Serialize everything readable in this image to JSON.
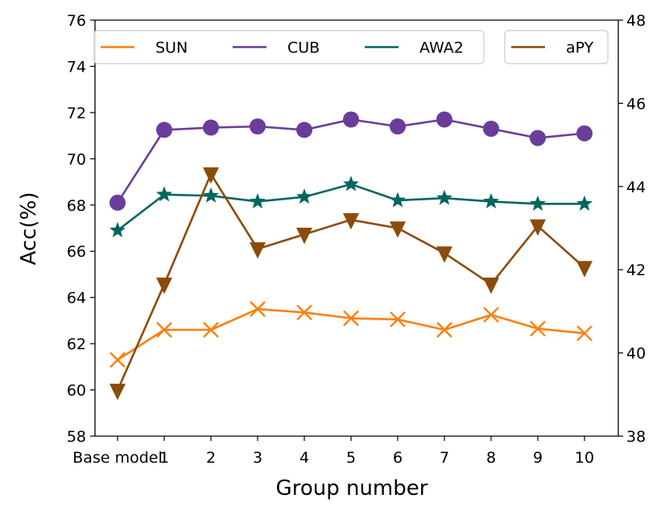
{
  "chart_data": {
    "type": "line",
    "title": "",
    "xlabel": "Group number",
    "ylabel": "Acc(%)",
    "categories": [
      "Base model",
      "1",
      "2",
      "3",
      "4",
      "5",
      "6",
      "7",
      "8",
      "9",
      "10"
    ],
    "ylim": [
      58,
      76
    ],
    "yticks": [
      "58",
      "60",
      "62",
      "64",
      "66",
      "68",
      "70",
      "72",
      "74",
      "76"
    ],
    "y2lim": [
      38,
      48
    ],
    "y2ticks": [
      "38",
      "40",
      "42",
      "44",
      "46",
      "48"
    ],
    "grid": false,
    "legend_position": "top",
    "series": [
      {
        "name": "SUN",
        "axis": "left",
        "color": "#ff7f0e",
        "marker": "x",
        "values": [
          61.3,
          62.6,
          62.6,
          63.5,
          63.35,
          63.1,
          63.05,
          62.6,
          63.25,
          62.65,
          62.45
        ]
      },
      {
        "name": "CUB",
        "axis": "left",
        "color": "#6a3d9a",
        "marker": "circle",
        "values": [
          68.1,
          71.25,
          71.35,
          71.4,
          71.25,
          71.7,
          71.4,
          71.7,
          71.3,
          70.9,
          71.1
        ]
      },
      {
        "name": "AWA2",
        "axis": "left",
        "color": "#00665e",
        "marker": "star",
        "values": [
          66.9,
          68.45,
          68.4,
          68.15,
          68.35,
          68.9,
          68.2,
          68.3,
          68.15,
          68.05,
          68.05
        ]
      },
      {
        "name": "aPY",
        "axis": "right",
        "color": "#8b4c0a",
        "marker": "triangle-down",
        "values": [
          39.1,
          41.65,
          44.3,
          42.5,
          42.85,
          43.2,
          43.0,
          42.4,
          41.65,
          43.05,
          42.05
        ]
      }
    ]
  }
}
